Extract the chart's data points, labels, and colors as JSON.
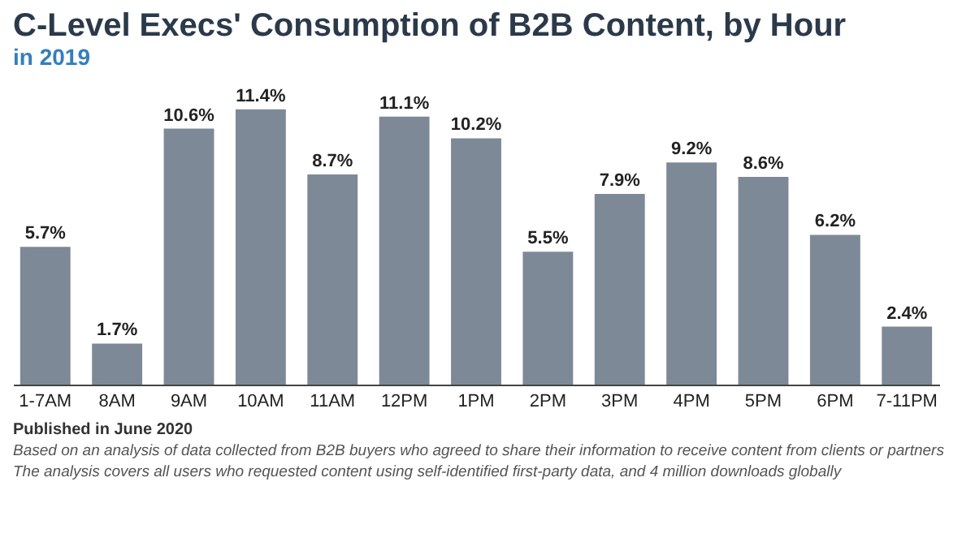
{
  "chart_data": {
    "type": "bar",
    "title": "C-Level Execs' Consumption of B2B Content, by Hour",
    "subtitle": "in 2019",
    "categories": [
      "1-7AM",
      "8AM",
      "9AM",
      "10AM",
      "11AM",
      "12PM",
      "1PM",
      "2PM",
      "3PM",
      "4PM",
      "5PM",
      "6PM",
      "7-11PM"
    ],
    "values": [
      5.7,
      1.7,
      10.6,
      11.4,
      8.7,
      11.1,
      10.2,
      5.5,
      7.9,
      9.2,
      8.6,
      6.2,
      2.4
    ],
    "value_labels": [
      "5.7%",
      "1.7%",
      "10.6%",
      "11.4%",
      "8.7%",
      "11.1%",
      "10.2%",
      "5.5%",
      "7.9%",
      "9.2%",
      "8.6%",
      "6.2%",
      "2.4%"
    ],
    "color": "#7d8996",
    "annotations": [
      "Published in June 2020",
      "Based on an analysis of data collected from B2B buyers who agreed to share their information to receive content from clients or partners",
      "The analysis covers all users who requested content using self-identified first-party data, and 4 million downloads globally"
    ]
  }
}
